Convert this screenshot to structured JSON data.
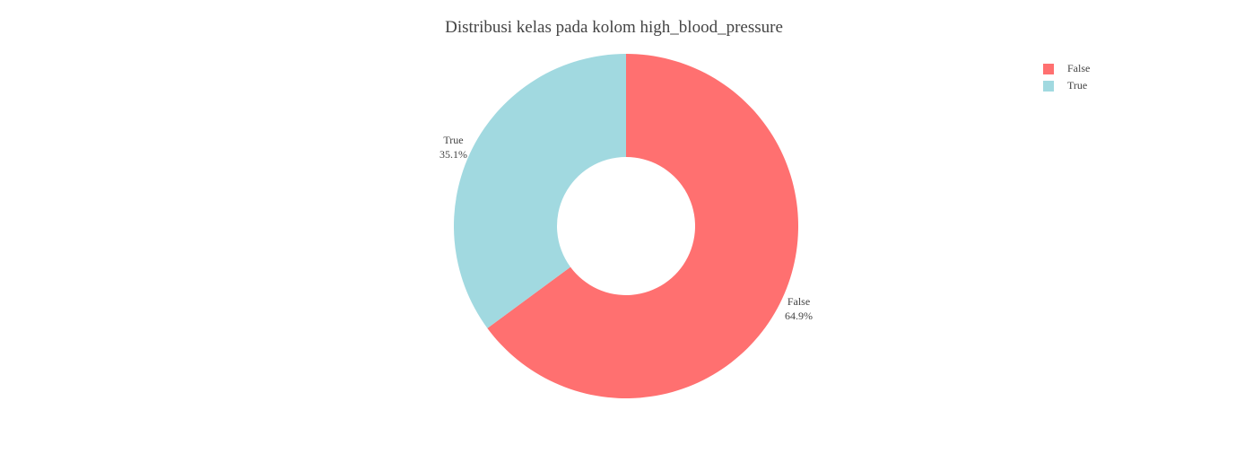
{
  "chart_data": {
    "type": "pie",
    "title": "Distribusi kelas pada kolom high_blood_pressure",
    "hole": true,
    "legend_position": "top-right",
    "slices": [
      {
        "label": "False",
        "percent_text": "64.9%",
        "value": 64.9,
        "color": "#ff7070"
      },
      {
        "label": "True",
        "percent_text": "35.1%",
        "value": 35.1,
        "color": "#a1d9e0"
      }
    ]
  }
}
